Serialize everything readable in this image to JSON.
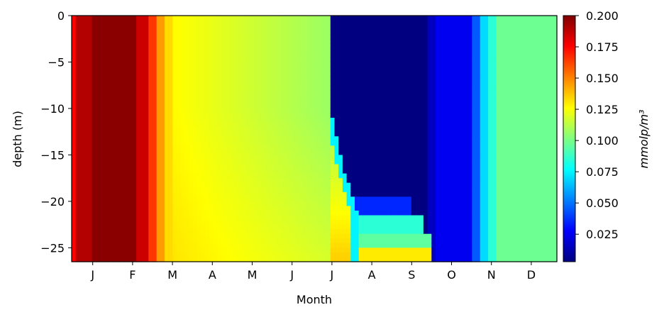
{
  "chart_data": {
    "type": "heatmap",
    "title": "",
    "xlabel": "Month",
    "ylabel": "depth (m)",
    "x_tick_labels": [
      "J",
      "F",
      "M",
      "A",
      "M",
      "J",
      "J",
      "A",
      "S",
      "O",
      "N",
      "D"
    ],
    "y_ticks": [
      0,
      -5,
      -10,
      -15,
      -20,
      -25
    ],
    "y_tick_labels": [
      "0",
      "−5",
      "−10",
      "−15",
      "−20",
      "−25"
    ],
    "ylim": [
      -26.5,
      0
    ],
    "colorbar": {
      "label": "mmolp/m³",
      "colormap": "jet",
      "range": [
        0.003,
        0.2
      ],
      "ticks": [
        0.025,
        0.05,
        0.075,
        0.1,
        0.125,
        0.15,
        0.175,
        0.2
      ],
      "tick_labels": [
        "0.025",
        "0.050",
        "0.075",
        "0.100",
        "0.125",
        "0.150",
        "0.175",
        "0.200"
      ]
    },
    "depth_layers": [
      -1,
      -3,
      -5,
      -7,
      -9,
      -11,
      -12,
      -13,
      -14,
      -15,
      -16,
      -17,
      -18,
      -19,
      -20,
      -21,
      -22,
      -23,
      -24,
      -25,
      -26
    ],
    "month_profiles": {
      "months": [
        "J",
        "F",
        "M",
        "A",
        "M",
        "J",
        "J",
        "A",
        "S",
        "O",
        "N",
        "D"
      ],
      "surface_values": [
        0.19,
        0.19,
        0.128,
        0.122,
        0.117,
        0.108,
        0.003,
        0.003,
        0.003,
        0.003,
        0.035,
        0.098
      ],
      "bottom_values": [
        0.19,
        0.19,
        0.135,
        0.13,
        0.128,
        0.132,
        0.135,
        0.12,
        0.12,
        0.01,
        0.035,
        0.098
      ]
    }
  }
}
